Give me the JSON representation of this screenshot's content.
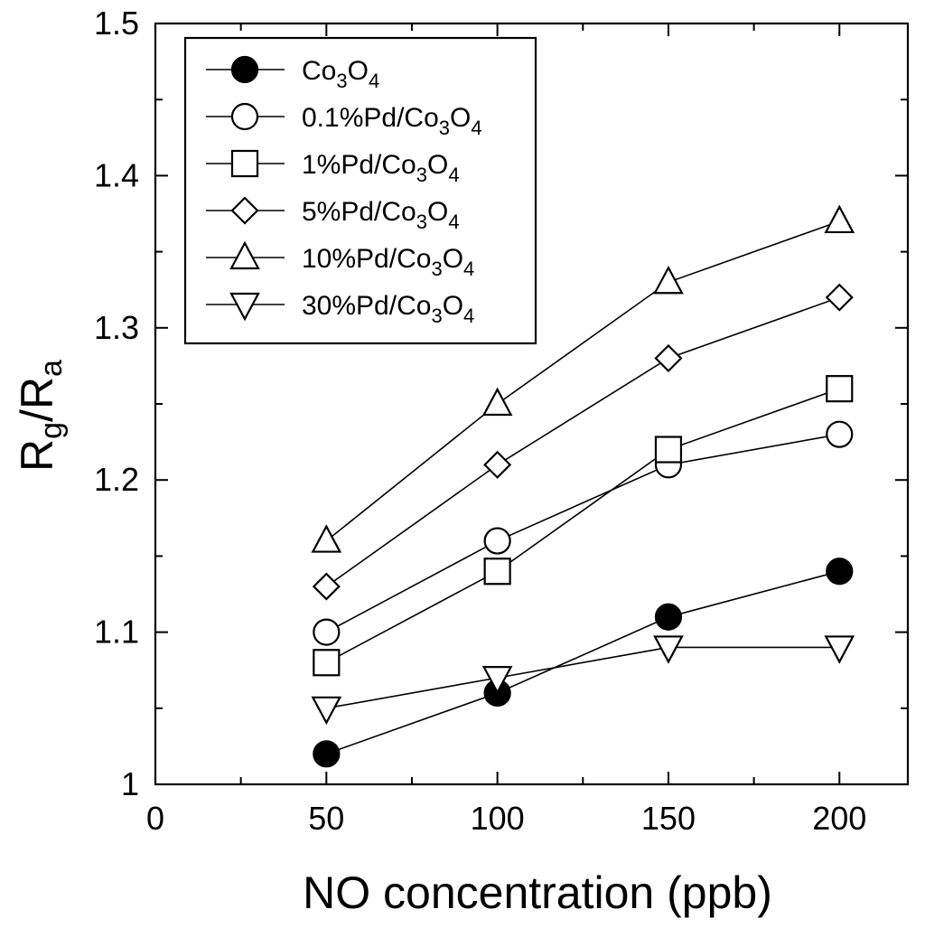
{
  "chart_data": {
    "type": "line",
    "title": "",
    "xlabel": "NO concentration (ppb)",
    "ylabel": {
      "base": "R",
      "sub1": "g",
      "mid": "/R",
      "sub2": "a"
    },
    "xlim": [
      0,
      220
    ],
    "ylim": [
      1.0,
      1.5
    ],
    "xticks": [
      0,
      50,
      100,
      150,
      200
    ],
    "xtick_labels": [
      "0",
      "50",
      "100",
      "150",
      "200"
    ],
    "yticks": [
      1.0,
      1.1,
      1.2,
      1.3,
      1.4,
      1.5
    ],
    "ytick_labels": [
      "1",
      "1.1",
      "1.2",
      "1.3",
      "1.4",
      "1.5"
    ],
    "y_minor_ticks": [
      1.05,
      1.15,
      1.25,
      1.35,
      1.45
    ],
    "x_minor_ticks": [
      25,
      75,
      125,
      175
    ],
    "grid": false,
    "legend_position": "top-left",
    "x": [
      50,
      100,
      150,
      200
    ],
    "series": [
      {
        "name": "Co3O4",
        "label": {
          "parts": [
            [
              "Co",
              ""
            ],
            [
              "3",
              "sub"
            ],
            [
              "O",
              ""
            ],
            [
              "4",
              "sub"
            ]
          ]
        },
        "marker": "filled-circle",
        "values": [
          1.02,
          1.06,
          1.11,
          1.14
        ]
      },
      {
        "name": "0.1%Pd/Co3O4",
        "label": {
          "parts": [
            [
              "0.1%Pd/Co",
              ""
            ],
            [
              "3",
              "sub"
            ],
            [
              "O",
              ""
            ],
            [
              "4",
              "sub"
            ]
          ]
        },
        "marker": "open-circle",
        "values": [
          1.1,
          1.16,
          1.21,
          1.23
        ]
      },
      {
        "name": "1%Pd/Co3O4",
        "label": {
          "parts": [
            [
              "1%Pd/Co",
              ""
            ],
            [
              "3",
              "sub"
            ],
            [
              "O",
              ""
            ],
            [
              "4",
              "sub"
            ]
          ]
        },
        "marker": "open-square",
        "values": [
          1.08,
          1.14,
          1.22,
          1.26
        ]
      },
      {
        "name": "5%Pd/Co3O4",
        "label": {
          "parts": [
            [
              "5%Pd/Co",
              ""
            ],
            [
              "3",
              "sub"
            ],
            [
              "O",
              ""
            ],
            [
              "4",
              "sub"
            ]
          ]
        },
        "marker": "open-diamond",
        "values": [
          1.13,
          1.21,
          1.28,
          1.32
        ]
      },
      {
        "name": "10%Pd/Co3O4",
        "label": {
          "parts": [
            [
              "10%Pd/Co",
              ""
            ],
            [
              "3",
              "sub"
            ],
            [
              "O",
              ""
            ],
            [
              "4",
              "sub"
            ]
          ]
        },
        "marker": "open-triangle-up",
        "values": [
          1.16,
          1.25,
          1.33,
          1.37
        ]
      },
      {
        "name": "30%Pd/Co3O4",
        "label": {
          "parts": [
            [
              "30%Pd/Co",
              ""
            ],
            [
              "3",
              "sub"
            ],
            [
              "O",
              ""
            ],
            [
              "4",
              "sub"
            ]
          ]
        },
        "marker": "open-triangle-down",
        "values": [
          1.05,
          1.07,
          1.09,
          1.09
        ]
      }
    ]
  }
}
